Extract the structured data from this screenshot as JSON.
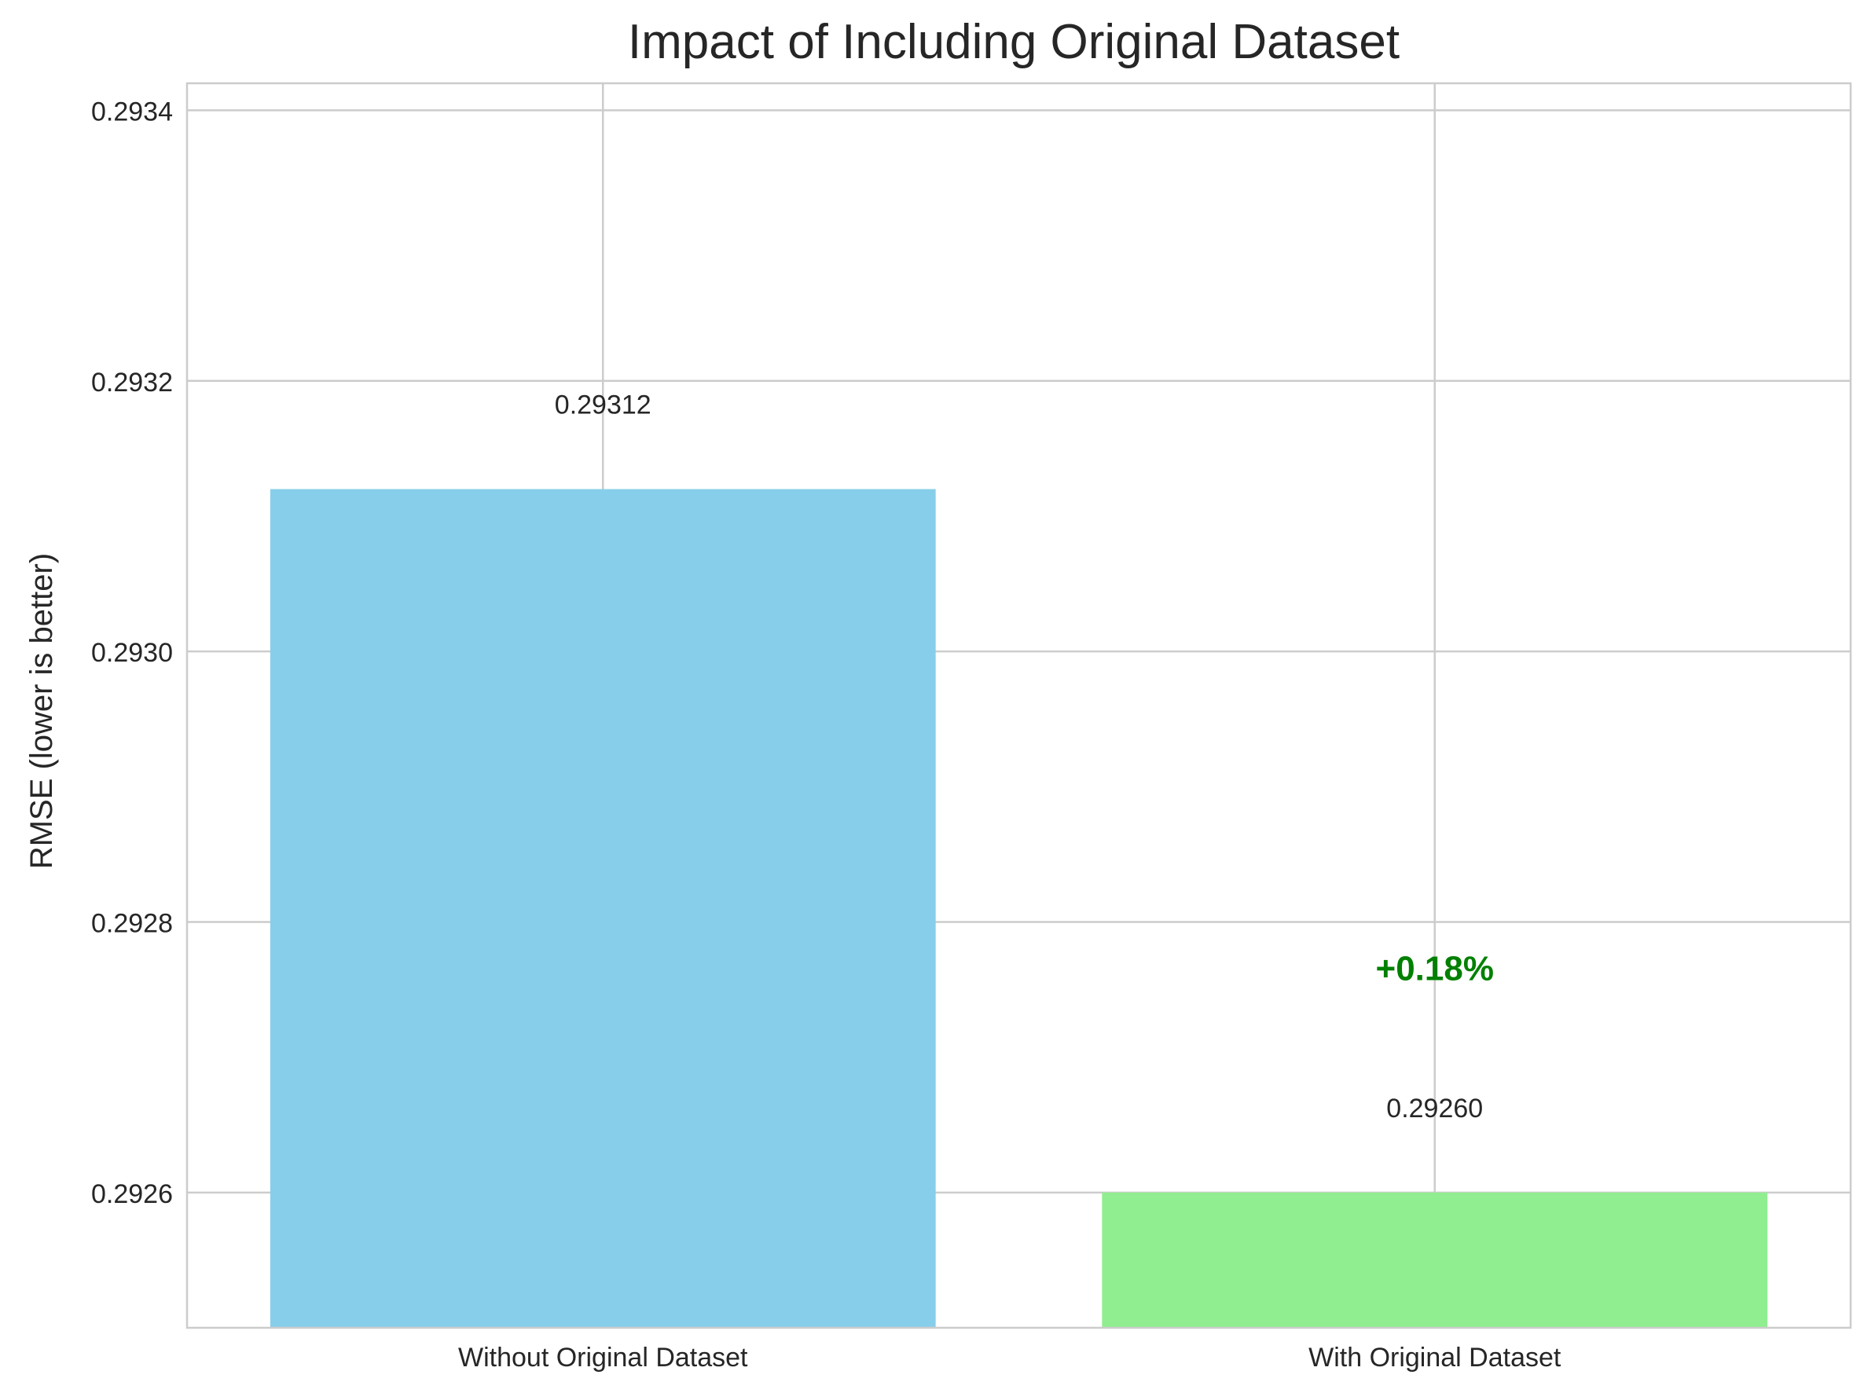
{
  "chart_data": {
    "type": "bar",
    "title": "Impact of Including Original Dataset",
    "xlabel": "",
    "ylabel": "RMSE (lower is better)",
    "categories": [
      "Without Original Dataset",
      "With Original Dataset"
    ],
    "values": [
      0.29312,
      0.2926
    ],
    "value_labels": [
      "0.29312",
      "0.29260"
    ],
    "colors": [
      "#87CEEB",
      "#90EE90"
    ],
    "ylim": [
      0.2925,
      0.29342
    ],
    "yticks": [
      0.2926,
      0.2928,
      0.293,
      0.2932,
      0.2934
    ],
    "ytick_labels": [
      "0.2926",
      "0.2928",
      "0.2930",
      "0.2932",
      "0.2934"
    ],
    "grid": true,
    "annotation": {
      "text": "+0.18%",
      "color": "#008000",
      "category": "With Original Dataset",
      "y": 0.29276
    }
  }
}
